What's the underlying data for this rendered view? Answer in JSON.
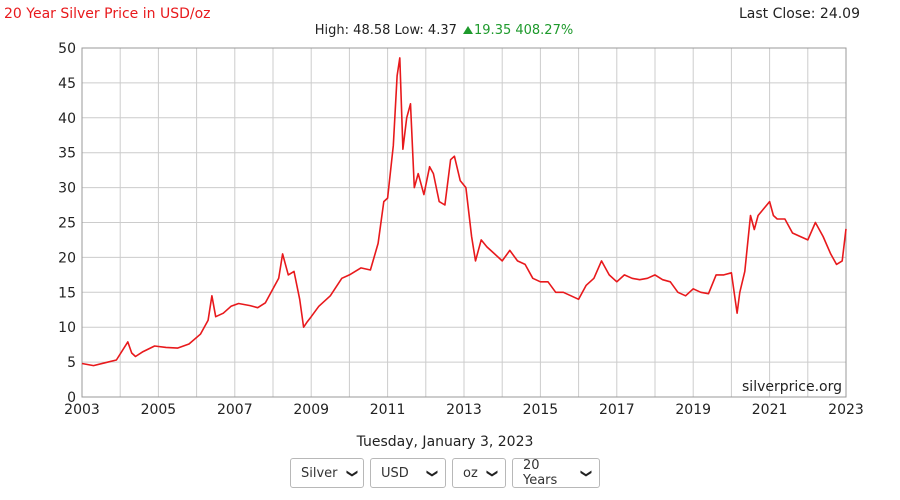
{
  "header": {
    "title": "20 Year Silver Price in USD/oz",
    "last_close": "Last Close: 24.09",
    "stats_prefix": "High: 48.58 Low: 4.37",
    "change": "19.35 408.27%"
  },
  "date_label": "Tuesday, January 3, 2023",
  "controls": {
    "metal": "Silver",
    "currency": "USD",
    "unit": "oz",
    "range": "20 Years"
  },
  "colors": {
    "line": "#e8191c",
    "change": "#1e9a2c",
    "grid": "#cccccc"
  },
  "chart_data": {
    "type": "line",
    "title": "20 Year Silver Price in USD/oz",
    "watermark": "silverprice.org",
    "x_ticks": [
      "2003",
      "2005",
      "2007",
      "2009",
      "2011",
      "2013",
      "2015",
      "2017",
      "2019",
      "2021",
      "2023"
    ],
    "y_ticks": [
      0,
      5,
      10,
      15,
      20,
      25,
      30,
      35,
      40,
      45,
      50
    ],
    "xlim": [
      2003,
      2023
    ],
    "ylim": [
      0,
      50
    ],
    "grid": true,
    "series": [
      {
        "x": [
          2003.0,
          2003.3,
          2003.6,
          2003.9,
          2004.2,
          2004.3,
          2004.4,
          2004.6,
          2004.9,
          2005.2,
          2005.5,
          2005.8,
          2006.1,
          2006.3,
          2006.4,
          2006.5,
          2006.7,
          2006.9,
          2007.1,
          2007.4,
          2007.6,
          2007.8,
          2008.0,
          2008.15,
          2008.25,
          2008.4,
          2008.55,
          2008.7,
          2008.8,
          2008.9,
          2009.0,
          2009.2,
          2009.5,
          2009.8,
          2010.0,
          2010.3,
          2010.55,
          2010.75,
          2010.9,
          2011.0,
          2011.15,
          2011.25,
          2011.32,
          2011.4,
          2011.5,
          2011.6,
          2011.7,
          2011.8,
          2011.95,
          2012.1,
          2012.2,
          2012.35,
          2012.5,
          2012.65,
          2012.75,
          2012.9,
          2013.05,
          2013.2,
          2013.3,
          2013.45,
          2013.6,
          2013.8,
          2014.0,
          2014.2,
          2014.4,
          2014.6,
          2014.8,
          2015.0,
          2015.2,
          2015.4,
          2015.6,
          2015.8,
          2016.0,
          2016.2,
          2016.4,
          2016.6,
          2016.8,
          2017.0,
          2017.2,
          2017.4,
          2017.6,
          2017.8,
          2018.0,
          2018.2,
          2018.4,
          2018.6,
          2018.8,
          2019.0,
          2019.2,
          2019.4,
          2019.6,
          2019.8,
          2020.0,
          2020.15,
          2020.22,
          2020.35,
          2020.5,
          2020.6,
          2020.7,
          2020.85,
          2021.0,
          2021.1,
          2021.2,
          2021.4,
          2021.6,
          2021.8,
          2022.0,
          2022.2,
          2022.4,
          2022.6,
          2022.75,
          2022.9,
          2023.0
        ],
        "y": [
          4.8,
          4.5,
          4.9,
          5.3,
          7.9,
          6.3,
          5.8,
          6.5,
          7.3,
          7.1,
          7.0,
          7.6,
          9.0,
          11.0,
          14.5,
          11.5,
          12.0,
          13.0,
          13.4,
          13.1,
          12.8,
          13.5,
          15.5,
          17.0,
          20.5,
          17.5,
          18.0,
          14.0,
          10.0,
          10.8,
          11.5,
          13.0,
          14.5,
          17.0,
          17.5,
          18.5,
          18.2,
          22.0,
          28.0,
          28.5,
          36.0,
          46.0,
          48.58,
          35.5,
          40.0,
          42.0,
          30.0,
          32.0,
          29.0,
          33.0,
          32.0,
          28.0,
          27.5,
          34.0,
          34.5,
          31.0,
          30.0,
          23.0,
          19.5,
          22.5,
          21.5,
          20.5,
          19.5,
          21.0,
          19.5,
          19.0,
          17.0,
          16.5,
          16.5,
          15.0,
          15.0,
          14.5,
          14.0,
          16.0,
          17.0,
          19.5,
          17.5,
          16.5,
          17.5,
          17.0,
          16.8,
          17.0,
          17.5,
          16.8,
          16.5,
          15.0,
          14.5,
          15.5,
          15.0,
          14.8,
          17.5,
          17.5,
          17.8,
          12.0,
          15.0,
          18.0,
          26.0,
          24.0,
          26.0,
          27.0,
          28.0,
          26.0,
          25.5,
          25.5,
          23.5,
          23.0,
          22.5,
          25.0,
          23.0,
          20.5,
          19.0,
          19.5,
          24.09
        ]
      }
    ]
  }
}
